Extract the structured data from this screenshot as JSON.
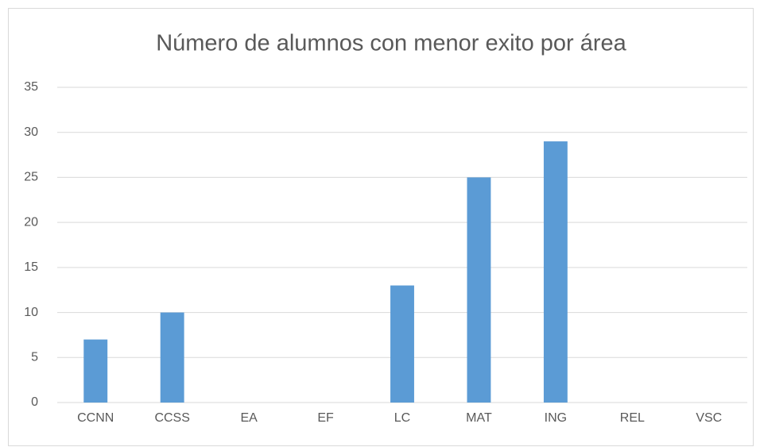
{
  "chart_data": {
    "type": "bar",
    "title": "Número de alumnos con menor exito por área",
    "categories": [
      "CCNN",
      "CCSS",
      "EA",
      "EF",
      "LC",
      "MAT",
      "ING",
      "REL",
      "VSC"
    ],
    "values": [
      7,
      10,
      0,
      0,
      13,
      25,
      29,
      0,
      0
    ],
    "color": "#5b9bd5",
    "ylim": [
      0,
      35
    ],
    "yticks": [
      0,
      5,
      10,
      15,
      20,
      25,
      30,
      35
    ],
    "grid": true
  }
}
